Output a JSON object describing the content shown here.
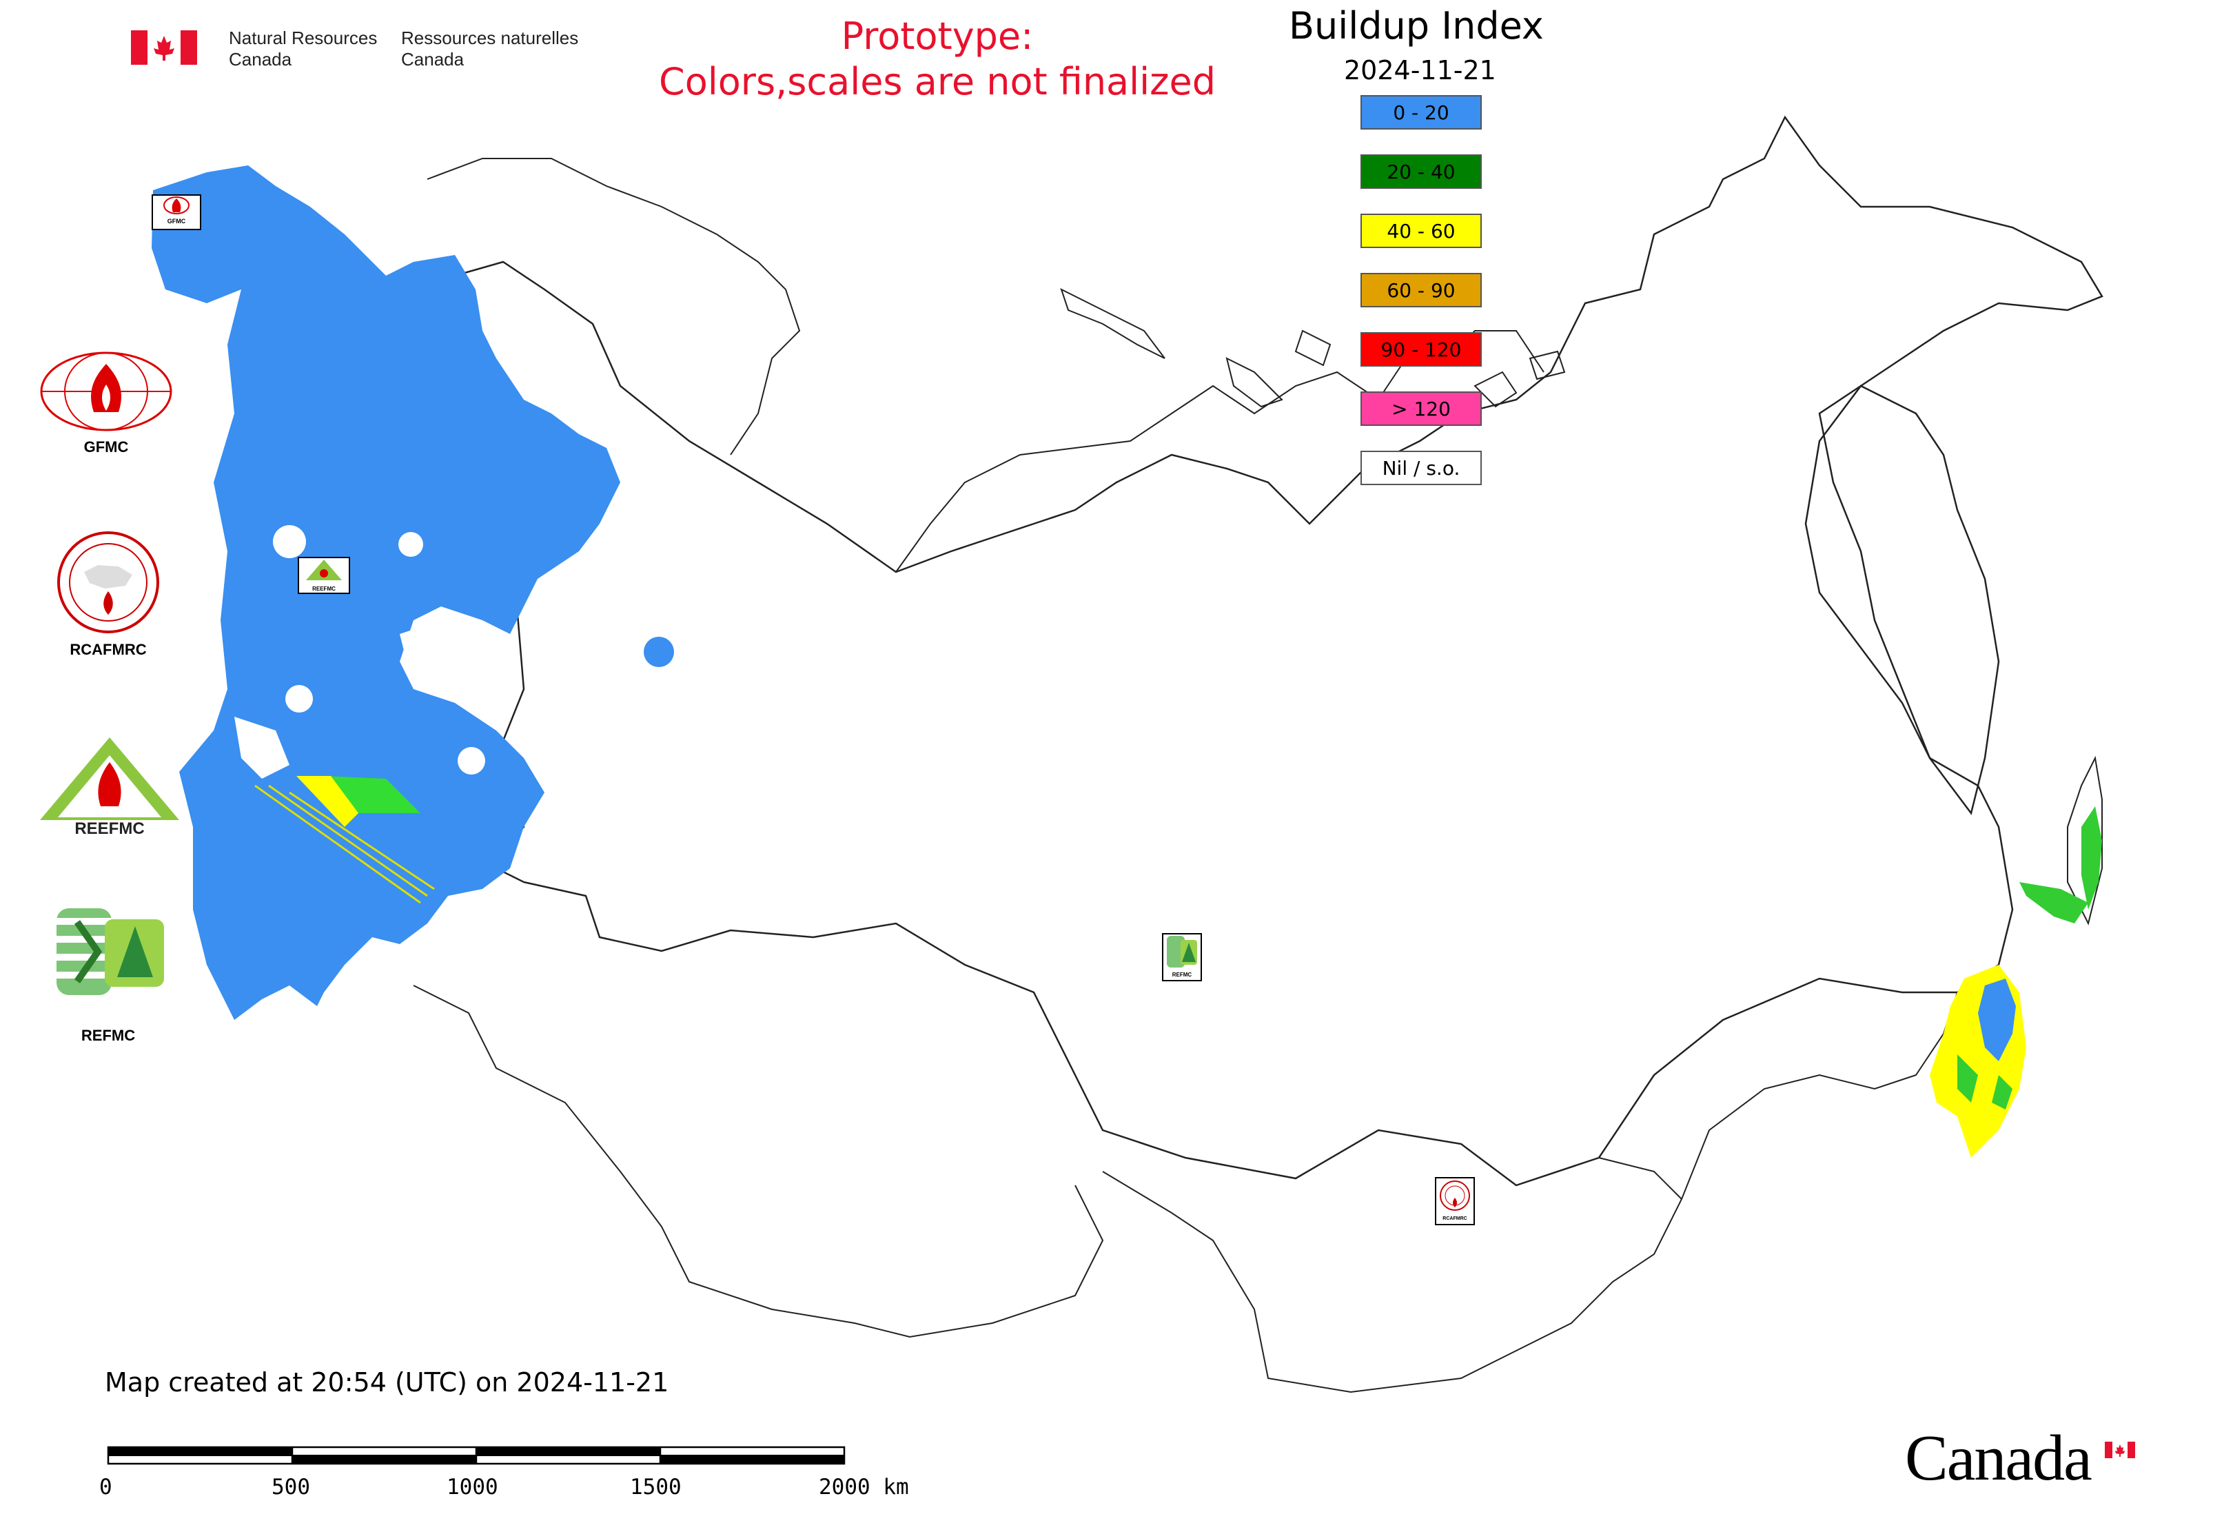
{
  "header": {
    "agency_en_line1": "Natural Resources",
    "agency_en_line2": "Canada",
    "agency_fr_line1": "Ressources naturelles",
    "agency_fr_line2": "Canada",
    "prototype_line1": "Prototype:",
    "prototype_line2": "Colors,scales are not finalized"
  },
  "map_title": "Buildup Index",
  "map_date": "2024-11-21",
  "legend": [
    {
      "label": "0 - 20",
      "color": "#3a8ff0"
    },
    {
      "label": "20 - 40",
      "color": "#008000"
    },
    {
      "label": "40 - 60",
      "color": "#ffff00"
    },
    {
      "label": "60 - 90",
      "color": "#e0a000"
    },
    {
      "label": "90 - 120",
      "color": "#ff0000"
    },
    {
      "label": "> 120",
      "color": "#ff40a0"
    },
    {
      "label": "Nil / s.o.",
      "color": "#ffffff"
    }
  ],
  "logos": {
    "gfmc": "GFMC",
    "rcafmrc": "RCAFMRC",
    "reefmc": "REEFMC",
    "refmc": "REFMC"
  },
  "map_markers": [
    "GFMC",
    "REEFMC",
    "REFMC",
    "RCAFMRC"
  ],
  "footer": {
    "created": "Map created at 20:54 (UTC) on 2024-11-21",
    "scale_ticks": [
      "0",
      "500",
      "1000",
      "1500",
      "2000 km"
    ],
    "wordmark": "Canada"
  },
  "colors": {
    "flag_red": "#e8112d",
    "fwi_blue": "#3a8ff0",
    "fwi_yellow": "#ffff00",
    "fwi_green": "#33cc33",
    "border": "#222222"
  }
}
